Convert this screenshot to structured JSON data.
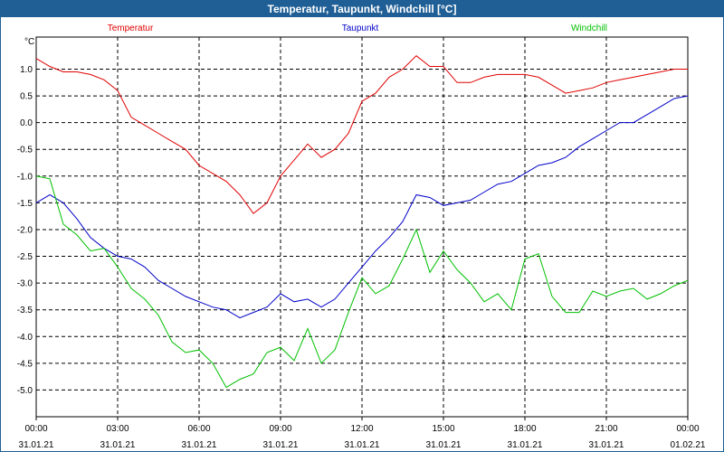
{
  "window": {
    "title": "Temperatur, Taupunkt, Windchill [°C]"
  },
  "chart_data": {
    "type": "line",
    "title": "Temperatur, Taupunkt, Windchill [°C]",
    "unit_label": "°C",
    "ylim": [
      -5.5,
      1.6
    ],
    "xlim": [
      0,
      24
    ],
    "grid": true,
    "y_ticks": [
      1.0,
      0.5,
      0.0,
      -0.5,
      -1.0,
      -1.5,
      -2.0,
      -2.5,
      -3.0,
      -3.5,
      -4.0,
      -4.5,
      -5.0
    ],
    "y_tick_labels": [
      "1.0",
      "0.5",
      "0.0",
      "-0.5",
      "-1.0",
      "-1.5",
      "-2.0",
      "-2.5",
      "-3.0",
      "-3.5",
      "-4.0",
      "-4.5",
      "-5.0"
    ],
    "x_ticks": [
      0,
      3,
      6,
      9,
      12,
      15,
      18,
      21,
      24
    ],
    "x_tick_labels": [
      {
        "time": "00:00",
        "date": "31.01.21"
      },
      {
        "time": "03:00",
        "date": "31.01.21"
      },
      {
        "time": "06:00",
        "date": "31.01.21"
      },
      {
        "time": "09:00",
        "date": "31.01.21"
      },
      {
        "time": "12:00",
        "date": "31.01.21"
      },
      {
        "time": "15:00",
        "date": "31.01.21"
      },
      {
        "time": "18:00",
        "date": "31.01.21"
      },
      {
        "time": "21:00",
        "date": "31.01.21"
      },
      {
        "time": "00:00",
        "date": "01.02.21"
      }
    ],
    "series": [
      {
        "name": "Temperatur",
        "color": "#e00000",
        "x": [
          0,
          0.5,
          1,
          1.5,
          2,
          2.5,
          3,
          3.5,
          4,
          4.5,
          5,
          5.5,
          6,
          6.5,
          7,
          7.5,
          8,
          8.5,
          9,
          9.5,
          10,
          10.5,
          11,
          11.5,
          12,
          12.5,
          13,
          13.5,
          14,
          14.5,
          15,
          15.5,
          16,
          16.5,
          17,
          17.5,
          18,
          18.5,
          19,
          19.5,
          20,
          20.5,
          21,
          21.5,
          22,
          22.5,
          23,
          23.5,
          24
        ],
        "values": [
          1.2,
          1.05,
          0.95,
          0.95,
          0.9,
          0.8,
          0.6,
          0.1,
          -0.05,
          -0.2,
          -0.35,
          -0.5,
          -0.8,
          -0.95,
          -1.1,
          -1.35,
          -1.7,
          -1.5,
          -1.0,
          -0.7,
          -0.4,
          -0.65,
          -0.5,
          -0.2,
          0.4,
          0.55,
          0.85,
          1.0,
          1.25,
          1.05,
          1.05,
          0.75,
          0.75,
          0.85,
          0.9,
          0.9,
          0.9,
          0.85,
          0.7,
          0.55,
          0.6,
          0.65,
          0.75,
          0.8,
          0.85,
          0.9,
          0.95,
          1.0,
          1.0
        ]
      },
      {
        "name": "Taupunkt",
        "color": "#0000c8",
        "x": [
          0,
          0.5,
          1,
          1.5,
          2,
          2.5,
          3,
          3.5,
          4,
          4.5,
          5,
          5.5,
          6,
          6.5,
          7,
          7.5,
          8,
          8.5,
          9,
          9.5,
          10,
          10.5,
          11,
          11.5,
          12,
          12.5,
          13,
          13.5,
          14,
          14.5,
          15,
          15.5,
          16,
          16.5,
          17,
          17.5,
          18,
          18.5,
          19,
          19.5,
          20,
          20.5,
          21,
          21.5,
          22,
          22.5,
          23,
          23.5,
          24
        ],
        "values": [
          -1.5,
          -1.35,
          -1.5,
          -1.8,
          -2.15,
          -2.35,
          -2.5,
          -2.55,
          -2.7,
          -2.95,
          -3.1,
          -3.25,
          -3.35,
          -3.45,
          -3.5,
          -3.65,
          -3.55,
          -3.45,
          -3.2,
          -3.35,
          -3.3,
          -3.45,
          -3.3,
          -3.0,
          -2.7,
          -2.4,
          -2.15,
          -1.85,
          -1.35,
          -1.4,
          -1.55,
          -1.5,
          -1.45,
          -1.3,
          -1.15,
          -1.1,
          -0.95,
          -0.8,
          -0.75,
          -0.65,
          -0.45,
          -0.3,
          -0.15,
          0.0,
          0.0,
          0.15,
          0.3,
          0.45,
          0.5
        ]
      },
      {
        "name": "Windchill",
        "color": "#00c000",
        "x": [
          0,
          0.5,
          1,
          1.5,
          2,
          2.5,
          3,
          3.5,
          4,
          4.5,
          5,
          5.5,
          6,
          6.5,
          7,
          7.5,
          8,
          8.5,
          9,
          9.5,
          10,
          10.5,
          11,
          11.5,
          12,
          12.5,
          13,
          13.5,
          14,
          14.5,
          15,
          15.5,
          16,
          16.5,
          17,
          17.5,
          18,
          18.5,
          19,
          19.5,
          20,
          20.5,
          21,
          21.5,
          22,
          22.5,
          23,
          23.5,
          24
        ],
        "values": [
          -1.0,
          -1.05,
          -1.9,
          -2.1,
          -2.4,
          -2.35,
          -2.7,
          -3.1,
          -3.3,
          -3.6,
          -4.1,
          -4.3,
          -4.25,
          -4.5,
          -4.95,
          -4.8,
          -4.7,
          -4.3,
          -4.2,
          -4.45,
          -3.85,
          -4.5,
          -4.25,
          -3.55,
          -2.9,
          -3.2,
          -3.05,
          -2.55,
          -2.0,
          -2.8,
          -2.4,
          -2.75,
          -3.0,
          -3.35,
          -3.2,
          -3.5,
          -2.55,
          -2.45,
          -3.25,
          -3.55,
          -3.55,
          -3.15,
          -3.25,
          -3.15,
          -3.1,
          -3.3,
          -3.2,
          -3.05,
          -2.95
        ]
      }
    ]
  }
}
